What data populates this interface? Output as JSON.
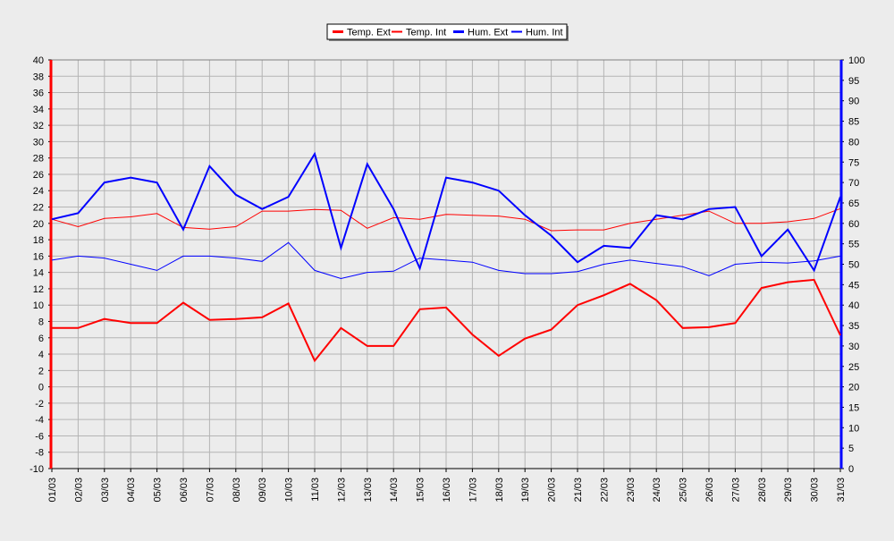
{
  "chart_data": {
    "type": "line",
    "categories": [
      "01/03",
      "02/03",
      "03/03",
      "04/03",
      "05/03",
      "06/03",
      "07/03",
      "08/03",
      "09/03",
      "10/03",
      "11/03",
      "12/03",
      "13/03",
      "14/03",
      "15/03",
      "16/03",
      "17/03",
      "18/03",
      "19/03",
      "20/03",
      "21/03",
      "22/03",
      "23/03",
      "24/03",
      "25/03",
      "26/03",
      "27/03",
      "28/03",
      "29/03",
      "30/03",
      "31/03"
    ],
    "left_axis": {
      "ylim": [
        -10,
        40
      ],
      "ticks": [
        40,
        38,
        36,
        34,
        32,
        30,
        28,
        26,
        24,
        22,
        20,
        18,
        16,
        14,
        12,
        10,
        8,
        6,
        4,
        2,
        0,
        -2,
        -4,
        -6,
        -8,
        -10
      ]
    },
    "right_axis": {
      "ylim": [
        0,
        100
      ],
      "ticks": [
        100,
        95,
        90,
        85,
        80,
        75,
        70,
        65,
        60,
        55,
        50,
        45,
        40,
        35,
        30,
        25,
        20,
        15,
        10,
        5,
        0
      ]
    },
    "grid": true,
    "legend_position": "top-center",
    "series": [
      {
        "name": "Temp. Ext",
        "color": "#ff0000",
        "width": 2,
        "axis": "left",
        "values": [
          7.2,
          7.2,
          8.3,
          7.8,
          7.8,
          10.3,
          8.2,
          8.3,
          8.5,
          10.2,
          3.2,
          7.2,
          5.0,
          5.0,
          9.5,
          9.7,
          6.4,
          3.8,
          5.9,
          7.0,
          10.0,
          11.2,
          12.6,
          10.6,
          7.2,
          7.3,
          7.8,
          12.1,
          12.8,
          13.1,
          6.3
        ]
      },
      {
        "name": "Temp. Int",
        "color": "#ff0000",
        "width": 1,
        "axis": "left",
        "values": [
          20.5,
          19.6,
          20.6,
          20.8,
          21.2,
          19.5,
          19.3,
          19.6,
          21.5,
          21.5,
          21.7,
          21.6,
          19.4,
          20.7,
          20.5,
          21.1,
          21.0,
          20.9,
          20.5,
          19.1,
          19.2,
          19.2,
          20.0,
          20.5,
          21.0,
          21.5,
          20.0,
          20.0,
          20.2,
          20.6,
          21.8
        ]
      },
      {
        "name": "Hum. Ext",
        "color": "#0000ff",
        "width": 2,
        "axis": "right",
        "values": [
          61,
          62.5,
          70,
          71.2,
          70,
          58.5,
          74,
          67,
          63.5,
          66.5,
          77,
          54,
          74.5,
          63.5,
          49,
          71.2,
          70,
          68,
          62,
          57,
          50.5,
          54.5,
          54,
          62,
          61,
          63.5,
          64,
          52,
          58.5,
          48.5,
          66.5
        ]
      },
      {
        "name": "Hum. Int",
        "color": "#0000ff",
        "width": 1,
        "axis": "right",
        "values": [
          51,
          52,
          51.5,
          50,
          48.5,
          52,
          52,
          51.5,
          50.7,
          55.3,
          48.5,
          46.5,
          48,
          48.3,
          51.5,
          51,
          50.5,
          48.5,
          47.7,
          47.7,
          48.2,
          50,
          51,
          50.2,
          49.4,
          47.2,
          50,
          50.5,
          50.3,
          50.8,
          52
        ]
      }
    ]
  }
}
